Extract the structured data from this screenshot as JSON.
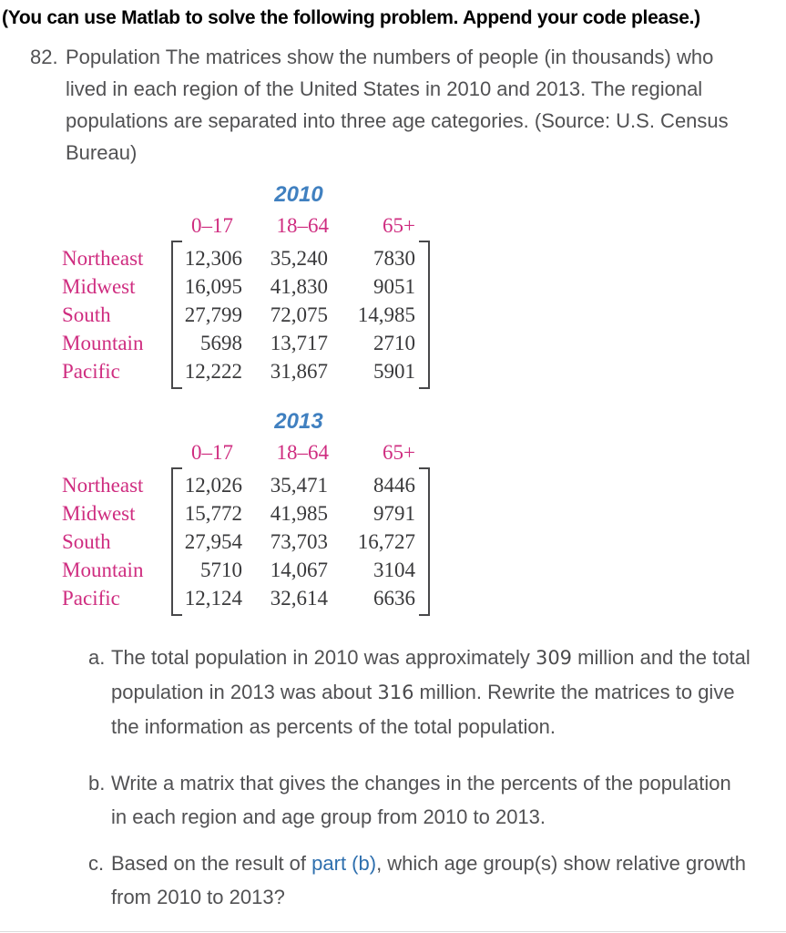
{
  "instruction": "(You can use Matlab to solve the following problem. Append your code please.)",
  "problem": {
    "number": "82.",
    "lines": [
      "Population The matrices show the numbers of people (in thousands) who",
      "lived in each region of the United States in 2010 and 2013. The regional",
      "populations are separated into three age categories. (Source: U.S. Census",
      "Bureau)"
    ]
  },
  "matrices": [
    {
      "year": "2010",
      "col_headers": [
        "0–17",
        "18–64",
        "65+"
      ],
      "rows": [
        {
          "label": "Northeast",
          "values": [
            "12,306",
            "35,240",
            "7830"
          ]
        },
        {
          "label": "Midwest",
          "values": [
            "16,095",
            "41,830",
            "9051"
          ]
        },
        {
          "label": "South",
          "values": [
            "27,799",
            "72,075",
            "14,985"
          ]
        },
        {
          "label": "Mountain",
          "values": [
            "5698",
            "13,717",
            "2710"
          ]
        },
        {
          "label": "Pacific",
          "values": [
            "12,222",
            "31,867",
            "5901"
          ]
        }
      ]
    },
    {
      "year": "2013",
      "col_headers": [
        "0–17",
        "18–64",
        "65+"
      ],
      "rows": [
        {
          "label": "Northeast",
          "values": [
            "12,026",
            "35,471",
            "8446"
          ]
        },
        {
          "label": "Midwest",
          "values": [
            "15,772",
            "41,985",
            "9791"
          ]
        },
        {
          "label": "South",
          "values": [
            "27,954",
            "73,703",
            "16,727"
          ]
        },
        {
          "label": "Mountain",
          "values": [
            "5710",
            "14,067",
            "3104"
          ]
        },
        {
          "label": "Pacific",
          "values": [
            "12,124",
            "32,614",
            "6636"
          ]
        }
      ]
    }
  ],
  "parts": {
    "a": {
      "label": "a.",
      "line1_pre": "The total population in 2010 was approximately ",
      "num1": "309",
      "line1_post": " million and the total",
      "line2_pre": "population in 2013 was about ",
      "num2": "316",
      "line2_post": " million. Rewrite the matrices to give",
      "line3": "the information as percents of the total population."
    },
    "b": {
      "label": "b.",
      "line1": "Write a matrix that gives the changes in the percents of the population",
      "line2": "in each region and age group from 2010 to 2013."
    },
    "c": {
      "label": "c.",
      "line1_pre": "Based on the result of ",
      "link": "part (b)",
      "line1_post": ", which age group(s) show relative growth",
      "line2": "from 2010 to 2013?"
    }
  },
  "colors": {
    "label_pink": "#cf2d80",
    "year_blue": "#4080c0",
    "link_blue": "#2e6fae"
  }
}
